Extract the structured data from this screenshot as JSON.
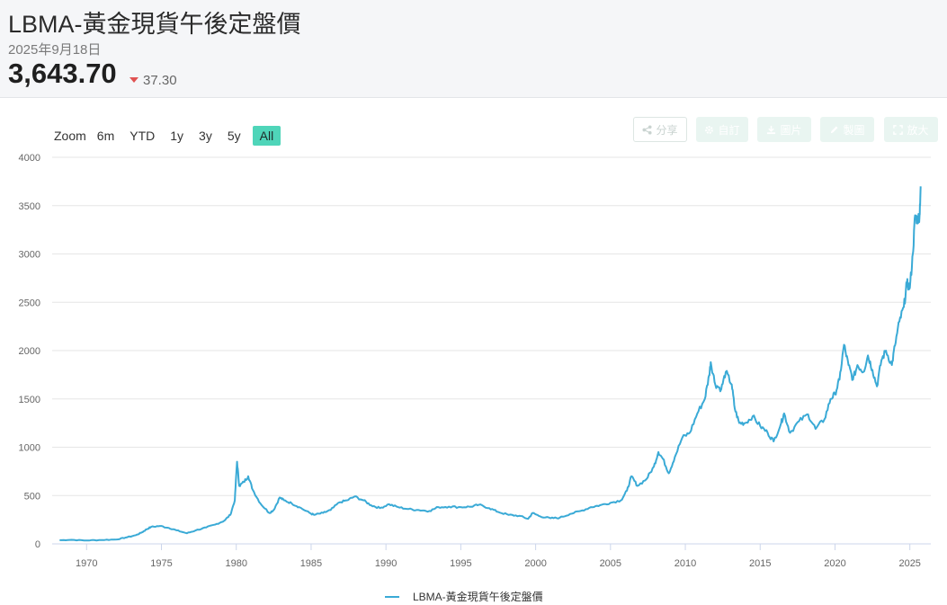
{
  "header": {
    "title": "LBMA-黃金現貨午後定盤價",
    "date": "2025年9月18日",
    "price": "3,643.70",
    "change": "37.30",
    "change_direction": "down",
    "change_color": "#e05252"
  },
  "range_selector": {
    "label": "Zoom",
    "buttons": [
      "6m",
      "YTD",
      "1y",
      "3y",
      "5y",
      "All"
    ],
    "selected": "All",
    "selected_color": "#4fd5b9"
  },
  "toolbar": {
    "share": {
      "label": "分享",
      "icon": "share-icon"
    },
    "custom": {
      "label": "自訂",
      "icon": "gear-icon"
    },
    "image": {
      "label": "圖片",
      "icon": "download-icon"
    },
    "draw": {
      "label": "製圖",
      "icon": "pencil-icon"
    },
    "enlarge": {
      "label": "放大",
      "icon": "expand-icon"
    }
  },
  "chart_data": {
    "type": "line",
    "title": "",
    "xlabel": "",
    "ylabel": "",
    "x_ticks": [
      "1970",
      "1975",
      "1980",
      "1985",
      "1990",
      "1995",
      "2000",
      "2005",
      "2010",
      "2015",
      "2020",
      "2025"
    ],
    "y_ticks": [
      "0",
      "500",
      "1000",
      "1500",
      "2000",
      "2500",
      "3000",
      "3500",
      "4000"
    ],
    "xlim": [
      1967.7,
      2026.4
    ],
    "ylim": [
      0,
      4000
    ],
    "grid": "horizontal",
    "legend_position": "bottom-center",
    "series": [
      {
        "name": "LBMA-黃金現貨午後定盤價",
        "color": "#3aaad6",
        "points": [
          [
            1968.2,
            38
          ],
          [
            1969.0,
            42
          ],
          [
            1970.0,
            35
          ],
          [
            1971.0,
            40
          ],
          [
            1972.0,
            46
          ],
          [
            1972.6,
            65
          ],
          [
            1973.3,
            90
          ],
          [
            1973.7,
            120
          ],
          [
            1974.0,
            150
          ],
          [
            1974.3,
            175
          ],
          [
            1974.9,
            185
          ],
          [
            1975.5,
            165
          ],
          [
            1976.0,
            140
          ],
          [
            1976.7,
            110
          ],
          [
            1977.3,
            140
          ],
          [
            1978.0,
            170
          ],
          [
            1978.6,
            200
          ],
          [
            1979.2,
            240
          ],
          [
            1979.6,
            300
          ],
          [
            1979.9,
            450
          ],
          [
            1980.05,
            850
          ],
          [
            1980.2,
            600
          ],
          [
            1980.5,
            640
          ],
          [
            1980.8,
            700
          ],
          [
            1981.1,
            560
          ],
          [
            1981.6,
            420
          ],
          [
            1982.2,
            320
          ],
          [
            1982.5,
            350
          ],
          [
            1982.9,
            480
          ],
          [
            1983.2,
            450
          ],
          [
            1983.7,
            420
          ],
          [
            1984.2,
            380
          ],
          [
            1984.9,
            320
          ],
          [
            1985.2,
            300
          ],
          [
            1985.8,
            320
          ],
          [
            1986.3,
            350
          ],
          [
            1986.9,
            430
          ],
          [
            1987.4,
            450
          ],
          [
            1987.9,
            490
          ],
          [
            1988.5,
            450
          ],
          [
            1989.0,
            400
          ],
          [
            1989.6,
            370
          ],
          [
            1990.2,
            410
          ],
          [
            1990.8,
            380
          ],
          [
            1991.5,
            360
          ],
          [
            1992.2,
            350
          ],
          [
            1992.9,
            340
          ],
          [
            1993.5,
            380
          ],
          [
            1994.2,
            385
          ],
          [
            1995.0,
            380
          ],
          [
            1995.7,
            385
          ],
          [
            1996.2,
            405
          ],
          [
            1996.9,
            370
          ],
          [
            1997.5,
            330
          ],
          [
            1998.2,
            300
          ],
          [
            1998.9,
            290
          ],
          [
            1999.5,
            260
          ],
          [
            1999.8,
            320
          ],
          [
            2000.3,
            285
          ],
          [
            2001.0,
            265
          ],
          [
            2001.6,
            270
          ],
          [
            2002.3,
            310
          ],
          [
            2003.0,
            340
          ],
          [
            2003.7,
            380
          ],
          [
            2004.3,
            400
          ],
          [
            2005.0,
            425
          ],
          [
            2005.7,
            450
          ],
          [
            2006.1,
            550
          ],
          [
            2006.4,
            700
          ],
          [
            2006.8,
            600
          ],
          [
            2007.4,
            670
          ],
          [
            2007.9,
            800
          ],
          [
            2008.2,
            950
          ],
          [
            2008.5,
            880
          ],
          [
            2008.9,
            730
          ],
          [
            2009.3,
            900
          ],
          [
            2009.8,
            1100
          ],
          [
            2010.3,
            1150
          ],
          [
            2010.8,
            1350
          ],
          [
            2011.3,
            1500
          ],
          [
            2011.6,
            1750
          ],
          [
            2011.7,
            1880
          ],
          [
            2012.0,
            1650
          ],
          [
            2012.4,
            1600
          ],
          [
            2012.7,
            1780
          ],
          [
            2013.1,
            1650
          ],
          [
            2013.3,
            1400
          ],
          [
            2013.6,
            1250
          ],
          [
            2014.0,
            1250
          ],
          [
            2014.5,
            1320
          ],
          [
            2015.0,
            1220
          ],
          [
            2015.5,
            1150
          ],
          [
            2015.9,
            1060
          ],
          [
            2016.4,
            1250
          ],
          [
            2016.6,
            1350
          ],
          [
            2017.0,
            1150
          ],
          [
            2017.6,
            1270
          ],
          [
            2018.2,
            1340
          ],
          [
            2018.7,
            1190
          ],
          [
            2019.3,
            1290
          ],
          [
            2019.7,
            1500
          ],
          [
            2020.0,
            1550
          ],
          [
            2020.3,
            1700
          ],
          [
            2020.6,
            2060
          ],
          [
            2020.9,
            1850
          ],
          [
            2021.2,
            1700
          ],
          [
            2021.5,
            1850
          ],
          [
            2021.9,
            1780
          ],
          [
            2022.2,
            1950
          ],
          [
            2022.5,
            1800
          ],
          [
            2022.8,
            1630
          ],
          [
            2023.1,
            1900
          ],
          [
            2023.4,
            2000
          ],
          [
            2023.8,
            1850
          ],
          [
            2024.0,
            2050
          ],
          [
            2024.3,
            2300
          ],
          [
            2024.6,
            2450
          ],
          [
            2024.8,
            2700
          ],
          [
            2025.0,
            2650
          ],
          [
            2025.2,
            3000
          ],
          [
            2025.35,
            3400
          ],
          [
            2025.5,
            3350
          ],
          [
            2025.65,
            3400
          ],
          [
            2025.72,
            3700
          ]
        ]
      }
    ]
  }
}
